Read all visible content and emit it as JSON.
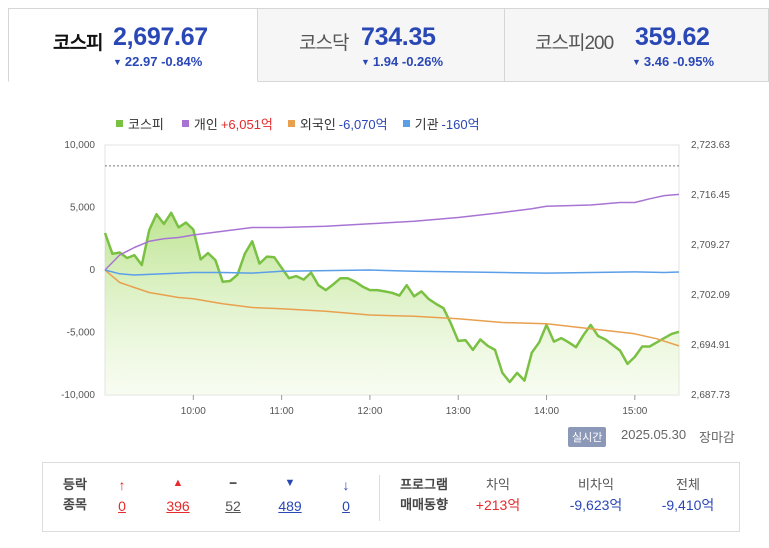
{
  "tabs": [
    {
      "name": "코스피",
      "value": "2,697.67",
      "change": "22.97",
      "pct": "-0.84%",
      "arrow": "▼"
    },
    {
      "name": "코스닥",
      "value": "734.35",
      "change": "1.94",
      "pct": "-0.26%",
      "arrow": "▼"
    },
    {
      "name": "코스피200",
      "value": "359.62",
      "change": "3.46",
      "pct": "-0.95%",
      "arrow": "▼"
    }
  ],
  "legend": [
    {
      "name": "코스피",
      "value": "",
      "color": "#7ac143"
    },
    {
      "name": "개인",
      "value": "+6,051억",
      "value_color": "#e52b2b",
      "color": "#a874d4"
    },
    {
      "name": "외국인",
      "value": "-6,070억",
      "value_color": "#2a47b6",
      "color": "#e8a04f"
    },
    {
      "name": "기관",
      "value": "-160억",
      "value_color": "#2a47b6",
      "color": "#5a9ee8"
    }
  ],
  "chart_data": {
    "type": "line",
    "x_ticks": [
      "10:00",
      "11:00",
      "12:00",
      "13:00",
      "14:00",
      "15:00"
    ],
    "x_range": [
      "09:00",
      "15:30"
    ],
    "y_left": {
      "min": -10000,
      "max": 10000,
      "ticks": [
        "10,000",
        "5,000",
        "0",
        "-5,000",
        "-10,000"
      ]
    },
    "y_right": {
      "min": 2687.73,
      "max": 2723.63,
      "ticks": [
        "2,723.63",
        "2,716.45",
        "2,709.27",
        "2,702.09",
        "2,694.91",
        "2,687.73"
      ]
    },
    "prev_close": 2720.64,
    "series": [
      {
        "name": "코스피",
        "axis": "right",
        "color": "#7ac143",
        "area": true,
        "x": [
          "09:00",
          "09:05",
          "09:10",
          "09:15",
          "09:20",
          "09:25",
          "09:30",
          "09:35",
          "09:40",
          "09:45",
          "09:50",
          "09:55",
          "10:00",
          "10:05",
          "10:10",
          "10:15",
          "10:20",
          "10:25",
          "10:30",
          "10:35",
          "10:40",
          "10:45",
          "10:50",
          "10:55",
          "11:00",
          "11:05",
          "11:10",
          "11:15",
          "11:20",
          "11:25",
          "11:30",
          "11:35",
          "11:40",
          "11:45",
          "11:50",
          "11:55",
          "12:00",
          "12:05",
          "12:10",
          "12:15",
          "12:20",
          "12:25",
          "12:30",
          "12:35",
          "12:40",
          "12:45",
          "12:50",
          "12:55",
          "13:00",
          "13:05",
          "13:10",
          "13:15",
          "13:20",
          "13:25",
          "13:30",
          "13:35",
          "13:40",
          "13:45",
          "13:50",
          "13:55",
          "14:00",
          "14:05",
          "14:10",
          "14:15",
          "14:20",
          "14:25",
          "14:30",
          "14:35",
          "14:40",
          "14:45",
          "14:50",
          "14:55",
          "15:00",
          "15:05",
          "15:10",
          "15:15",
          "15:20",
          "15:25",
          "15:30"
        ],
        "y": [
          2711.0,
          2708.0,
          2708.2,
          2707.4,
          2707.8,
          2706.4,
          2711.4,
          2713.7,
          2712.3,
          2713.9,
          2711.8,
          2712.5,
          2711.5,
          2707.2,
          2708.1,
          2707.1,
          2704.0,
          2704.1,
          2705.0,
          2708.0,
          2709.8,
          2706.6,
          2707.6,
          2707.5,
          2706.0,
          2704.5,
          2704.8,
          2704.3,
          2705.3,
          2703.5,
          2702.8,
          2703.6,
          2704.5,
          2704.5,
          2704.0,
          2703.3,
          2702.8,
          2702.8,
          2702.6,
          2702.4,
          2702.0,
          2703.5,
          2701.9,
          2702.6,
          2701.5,
          2700.8,
          2700.2,
          2698.0,
          2695.5,
          2695.6,
          2694.2,
          2695.7,
          2694.8,
          2694.2,
          2690.9,
          2689.6,
          2690.9,
          2689.8,
          2693.8,
          2695.3,
          2697.8,
          2695.4,
          2695.9,
          2695.3,
          2694.6,
          2696.3,
          2697.8,
          2696.2,
          2695.7,
          2694.9,
          2694.1,
          2692.2,
          2693.2,
          2694.7,
          2694.7,
          2695.3,
          2695.9,
          2696.5,
          2696.8
        ]
      },
      {
        "name": "개인",
        "axis": "left",
        "color": "#a874d4",
        "x": [
          "09:00",
          "09:10",
          "09:20",
          "09:30",
          "09:40",
          "09:50",
          "10:00",
          "10:20",
          "10:40",
          "11:00",
          "11:30",
          "12:00",
          "12:30",
          "13:00",
          "13:30",
          "13:50",
          "14:00",
          "14:30",
          "14:50",
          "15:00",
          "15:10",
          "15:20",
          "15:30"
        ],
        "y": [
          0,
          1200,
          1800,
          2300,
          2500,
          2600,
          2800,
          3100,
          3400,
          3400,
          3500,
          3700,
          3900,
          4200,
          4600,
          4900,
          5100,
          5200,
          5400,
          5400,
          5700,
          5950,
          6051
        ]
      },
      {
        "name": "외국인",
        "axis": "left",
        "color": "#e8a04f",
        "x": [
          "09:00",
          "09:05",
          "09:10",
          "09:20",
          "09:30",
          "09:40",
          "09:50",
          "10:00",
          "10:20",
          "10:40",
          "11:00",
          "11:30",
          "12:00",
          "12:30",
          "13:00",
          "13:30",
          "14:00",
          "14:30",
          "15:00",
          "15:15",
          "15:30"
        ],
        "y": [
          0,
          -500,
          -1000,
          -1400,
          -1800,
          -2000,
          -2200,
          -2300,
          -2700,
          -3000,
          -3100,
          -3300,
          -3600,
          -3700,
          -3900,
          -4200,
          -4300,
          -4700,
          -5100,
          -5500,
          -6070
        ]
      },
      {
        "name": "기관",
        "axis": "left",
        "color": "#5a9ee8",
        "x": [
          "09:00",
          "09:10",
          "09:20",
          "09:40",
          "10:00",
          "10:20",
          "10:40",
          "11:00",
          "11:30",
          "12:00",
          "12:30",
          "13:00",
          "13:30",
          "14:00",
          "14:30",
          "15:00",
          "15:20",
          "15:30"
        ],
        "y": [
          0,
          -300,
          -400,
          -300,
          -200,
          -200,
          -250,
          -100,
          -50,
          0,
          -100,
          -150,
          -200,
          -250,
          -200,
          -150,
          -200,
          -160
        ]
      }
    ]
  },
  "footer": {
    "badge": "실시간",
    "date": "2025.05.30",
    "status": "장마감"
  },
  "stats": {
    "header1": "등락",
    "header2": "종목",
    "items": [
      {
        "icon": "↑",
        "value": "0",
        "color": "#e52b2b"
      },
      {
        "icon": "▲",
        "value": "396",
        "color": "#e52b2b"
      },
      {
        "icon": "━",
        "value": "52",
        "color": "#555"
      },
      {
        "icon": "▼",
        "value": "489",
        "color": "#2a47b6"
      },
      {
        "icon": "↓",
        "value": "0",
        "color": "#2a47b6"
      }
    ],
    "program1": "프로그램",
    "program2": "매매동향",
    "program_cols": [
      {
        "label": "차익",
        "value": "+213억",
        "color": "#e52b2b"
      },
      {
        "label": "비차익",
        "value": "-9,623억",
        "color": "#2a47b6"
      },
      {
        "label": "전체",
        "value": "-9,410억",
        "color": "#2a47b6"
      }
    ]
  }
}
